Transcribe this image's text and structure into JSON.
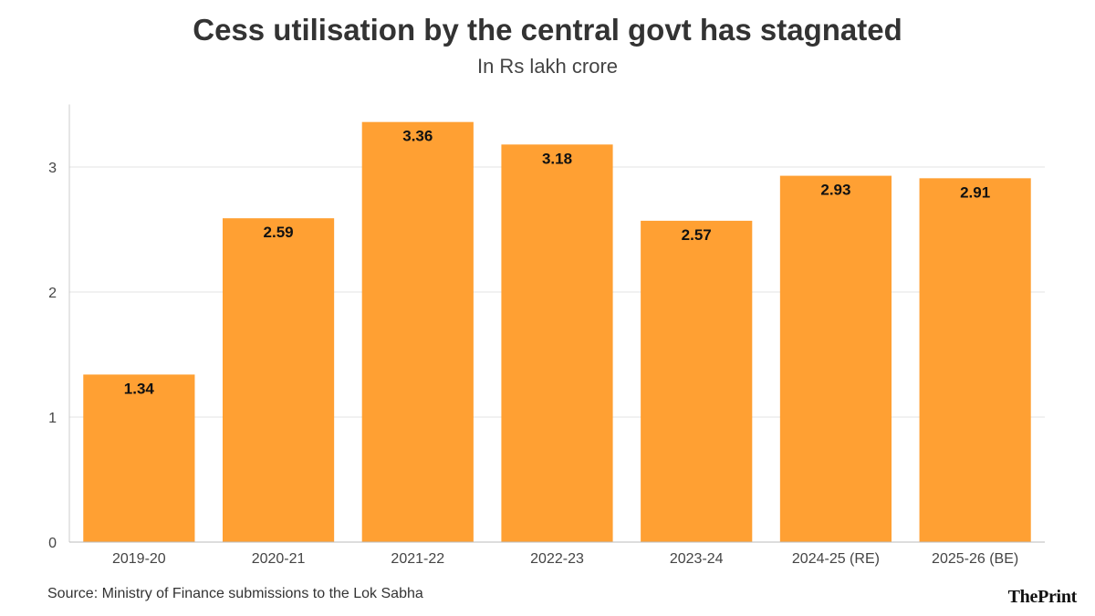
{
  "chart_data": {
    "type": "bar",
    "title": "Cess utilisation by the central govt has stagnated",
    "subtitle": "In Rs lakh crore",
    "xlabel": "",
    "ylabel": "",
    "categories": [
      "2019-20",
      "2020-21",
      "2021-22",
      "2022-23",
      "2023-24",
      "2024-25 (RE)",
      "2025-26 (BE)"
    ],
    "values": [
      1.34,
      2.59,
      3.36,
      3.18,
      2.57,
      2.93,
      2.91
    ],
    "value_labels": [
      "1.34",
      "2.59",
      "3.36",
      "3.18",
      "2.57",
      "2.93",
      "2.91"
    ],
    "yticks": [
      0,
      1,
      2,
      3
    ],
    "ylim": [
      0,
      3.5
    ],
    "grid": true,
    "bar_color": "#FFA033",
    "label_color": "#111111"
  },
  "footer": {
    "source": "Source: Ministry of Finance submissions to the Lok Sabha",
    "logo_the": "The",
    "logo_print": "Print"
  }
}
